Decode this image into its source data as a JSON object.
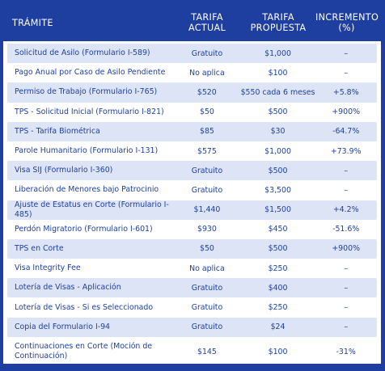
{
  "header": {
    "tramite": "TRÁMITE",
    "tarifa_actual_line1": "TARIFA",
    "tarifa_actual_line2": "ACTUAL",
    "tarifa_propuesta_line1": "TARIFA",
    "tarifa_propuesta_line2": "PROPUESTA",
    "incremento_line1": "INCREMENTO",
    "incremento_line2": "(%)"
  },
  "colors": {
    "brand_blue": "#1f3fa0",
    "stripe": "#dde4f5"
  },
  "rows": [
    {
      "tramite": "Solicitud de Asilo (Formulario I-589)",
      "actual": "Gratuito",
      "propuesta": "$1,000",
      "incremento": "–"
    },
    {
      "tramite": "Pago Anual por Caso de Asilo Pendiente",
      "actual": "No aplica",
      "propuesta": "$100",
      "incremento": "–"
    },
    {
      "tramite": "Permiso de Trabajo (Formulario I-765)",
      "actual": "$520",
      "propuesta": "$550 cada 6 meses",
      "incremento": "+5.8%"
    },
    {
      "tramite": "TPS - Solicitud Inicial (Formulario I-821)",
      "actual": "$50",
      "propuesta": "$500",
      "incremento": "+900%"
    },
    {
      "tramite": "TPS - Tarifa Biométrica",
      "actual": "$85",
      "propuesta": "$30",
      "incremento": "-64.7%"
    },
    {
      "tramite": "Parole Humanitario (Formulario I-131)",
      "actual": "$575",
      "propuesta": "$1,000",
      "incremento": "+73.9%"
    },
    {
      "tramite": "Visa SIJ (Formulario I-360)",
      "actual": "Gratuito",
      "propuesta": "$500",
      "incremento": "–"
    },
    {
      "tramite": "Liberación de Menores bajo Patrocinio",
      "actual": "Gratuito",
      "propuesta": "$3,500",
      "incremento": "–"
    },
    {
      "tramite": "Ajuste de Estatus en Corte (Formulario I-485)",
      "actual": "$1,440",
      "propuesta": "$1,500",
      "incremento": "+4.2%"
    },
    {
      "tramite": "Perdón Migratorio (Formulario I-601)",
      "actual": "$930",
      "propuesta": "$450",
      "incremento": "-51.6%"
    },
    {
      "tramite": "TPS en Corte",
      "actual": "$50",
      "propuesta": "$500",
      "incremento": "+900%"
    },
    {
      "tramite": "Visa Integrity Fee",
      "actual": "No aplica",
      "propuesta": "$250",
      "incremento": "–"
    },
    {
      "tramite": "Lotería de Visas - Aplicación",
      "actual": "Gratuito",
      "propuesta": "$400",
      "incremento": "–"
    },
    {
      "tramite": "Lotería de Visas - Si es Seleccionado",
      "actual": "Gratuito",
      "propuesta": "$250",
      "incremento": "–"
    },
    {
      "tramite": "Copia del Formulario I-94",
      "actual": "Gratuito",
      "propuesta": "$24",
      "incremento": "–"
    },
    {
      "tramite": "Continuaciones en Corte (Moción de Continuación)",
      "actual": "$145",
      "propuesta": "$100",
      "incremento": "-31%"
    }
  ]
}
